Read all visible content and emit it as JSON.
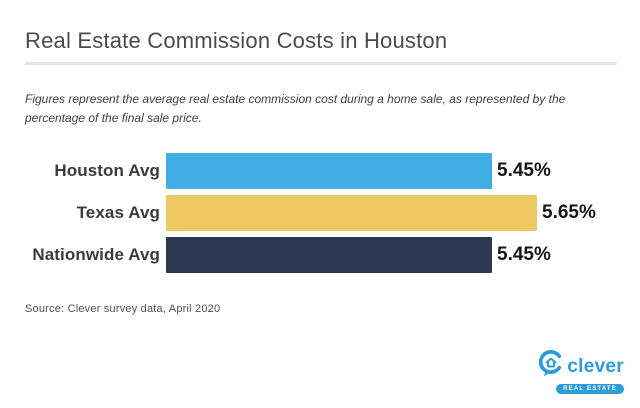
{
  "header": {
    "title": "Real Estate Commission Costs in Houston",
    "subtitle": "Figures represent the average real estate commission cost during a home sale, as represented by the percentage of the final sale price."
  },
  "source_note": "Source: Clever survey data, April 2020",
  "logo": {
    "brand": "clever",
    "tagline": "REAL ESTATE"
  },
  "colors": {
    "bar_houston": "#41aee4",
    "bar_texas": "#eec963",
    "bar_nationwide": "#2c3850",
    "brand_blue": "#2d9cdb",
    "divider_gray": "#e4e4e4",
    "title_gray": "#4b4b4b"
  },
  "chart_data": {
    "type": "bar",
    "orientation": "horizontal",
    "title": "Real Estate Commission Costs in Houston",
    "xlabel": "",
    "ylabel": "",
    "legend": "none",
    "axes_hidden": true,
    "grid": false,
    "categories": [
      "Houston Avg",
      "Texas Avg",
      "Nationwide Avg"
    ],
    "values": [
      5.45,
      5.65,
      5.45
    ],
    "value_labels": [
      "5.45%",
      "5.65%",
      "5.45%"
    ],
    "unit": "percent of final sale price",
    "bar_colors": [
      "#41aee4",
      "#eec963",
      "#2c3850"
    ],
    "bar_pixel_widths": [
      326,
      371,
      326
    ]
  }
}
